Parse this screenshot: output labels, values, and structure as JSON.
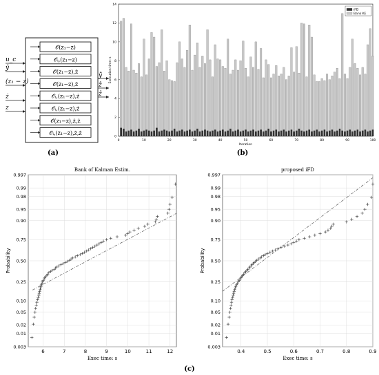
{
  "panel_labels": {
    "a": "(a)",
    "b": "(b)",
    "c": "(c)"
  },
  "diagram": {
    "inputs": [
      "u_c",
      "ŷ",
      "(z₁ − z)",
      "ż",
      "z"
    ],
    "blocks": [
      "𝒪(z₁−z)",
      "𝒪ᵢ,(z₁−z)",
      "𝒪(z₁−z),ż",
      "𝒪(z₁−z),ż",
      "𝒪ᵢ,(z₁−z),ż",
      "𝒪ᵢ,(z₁−z),ż",
      "𝒪(z₁−z),ż,ż",
      "𝒪ᵢ,(z₁−z),ż,ż"
    ],
    "outputs": [
      "ŷ̂",
      "ż̂",
      "ẑ"
    ]
  },
  "chart_data": [
    {
      "type": "bar",
      "title": "",
      "xlabel": "Iteration",
      "ylabel": "Execution time: s",
      "xlim": [
        0,
        100
      ],
      "ylim": [
        0,
        14
      ],
      "xticks": [
        0,
        10,
        20,
        30,
        40,
        50,
        60,
        70,
        80,
        90,
        100
      ],
      "yticks": [
        0,
        2,
        4,
        6,
        8,
        10,
        12,
        14
      ],
      "legend_position": "top-right",
      "series": [
        {
          "name": "iFD",
          "color": "#333333",
          "values": [
            0.9,
            0.8,
            0.5,
            0.6,
            0.7,
            0.5,
            0.6,
            0.8,
            0.5,
            0.6,
            0.7,
            0.6,
            0.5,
            0.6,
            0.9,
            0.5,
            0.6,
            0.7,
            0.6,
            0.5,
            0.6,
            0.8,
            0.5,
            0.6,
            0.7,
            0.5,
            0.6,
            0.7,
            0.5,
            0.6,
            0.8,
            0.5,
            0.6,
            0.7,
            0.6,
            0.5,
            0.6,
            0.7,
            0.5,
            0.6,
            0.7,
            0.5,
            0.6,
            0.8,
            0.5,
            0.6,
            0.7,
            0.5,
            0.6,
            0.7,
            0.5,
            0.6,
            0.7,
            0.5,
            0.6,
            0.7,
            0.5,
            0.6,
            0.8,
            0.5,
            0.6,
            0.7,
            0.5,
            0.6,
            0.7,
            0.5,
            0.6,
            0.7,
            0.5,
            0.6,
            0.8,
            0.6,
            0.5,
            0.6,
            0.7,
            0.5,
            0.6,
            0.7,
            0.5,
            0.6,
            0.7,
            0.5,
            0.6,
            0.7,
            0.5,
            0.6,
            0.8,
            0.6,
            0.5,
            0.6,
            0.7,
            0.5,
            0.6,
            0.7,
            0.5,
            0.6,
            0.7,
            0.5,
            0.6,
            0.7
          ]
        },
        {
          "name": "Bank KE",
          "color": "#c8c8c8",
          "values": [
            12.2,
            12.5,
            7.3,
            6.9,
            11.9,
            7.0,
            6.7,
            7.7,
            6.3,
            10.3,
            6.5,
            8.2,
            11.0,
            10.5,
            7.4,
            7.8,
            11.3,
            6.9,
            8.0,
            6.0,
            5.9,
            5.8,
            7.8,
            10.0,
            8.2,
            7.3,
            9.1,
            11.8,
            7.0,
            8.6,
            9.9,
            7.3,
            8.5,
            7.7,
            11.3,
            8.1,
            6.3,
            9.7,
            8.2,
            8.1,
            7.4,
            7.2,
            10.3,
            6.6,
            7.0,
            8.1,
            7.0,
            8.0,
            10.1,
            7.2,
            6.3,
            8.4,
            7.3,
            10.0,
            7.1,
            9.3,
            6.2,
            8.1,
            7.6,
            6.2,
            6.6,
            7.5,
            6.4,
            6.6,
            7.3,
            6.0,
            6.4,
            9.4,
            6.8,
            9.5,
            6.7,
            12.0,
            11.9,
            6.3,
            11.8,
            10.5,
            6.5,
            5.8,
            5.8,
            6.1,
            5.9,
            6.6,
            6.0,
            6.4,
            6.8,
            7.2,
            6.1,
            13.0,
            6.6,
            6.1,
            7.3,
            10.3,
            7.7,
            7.2,
            6.5,
            7.3,
            6.6,
            9.7,
            11.4,
            8.5
          ]
        }
      ]
    },
    {
      "type": "scatter",
      "title": "Bank of Kalman Estim.",
      "xlabel": "Exec time: s",
      "ylabel": "Probability",
      "scale": "normal-probability",
      "xlim": [
        5.3,
        12.3
      ],
      "xticks": [
        6,
        7,
        8,
        9,
        10,
        11,
        12
      ],
      "yticks": [
        0.003,
        0.01,
        0.02,
        0.05,
        0.1,
        0.25,
        0.5,
        0.75,
        0.9,
        0.95,
        0.98,
        0.99,
        0.997
      ],
      "ytick_labels": [
        "0.003",
        "0.01",
        "0.02",
        "0.05",
        "0.10",
        "0.25",
        "0.50",
        "0.75",
        "0.90",
        "0.95",
        "0.98",
        "0.99",
        "0.997"
      ],
      "points_x": [
        5.47,
        5.54,
        5.58,
        5.62,
        5.65,
        5.68,
        5.71,
        5.74,
        5.77,
        5.8,
        5.82,
        5.84,
        5.86,
        5.88,
        5.9,
        5.92,
        5.95,
        5.98,
        6.0,
        6.05,
        6.08,
        6.12,
        6.18,
        6.22,
        6.27,
        6.35,
        6.42,
        6.52,
        6.58,
        6.65,
        6.75,
        6.85,
        6.95,
        7.05,
        7.15,
        7.25,
        7.32,
        7.4,
        7.52,
        7.62,
        7.75,
        7.85,
        7.95,
        8.05,
        8.15,
        8.25,
        8.35,
        8.45,
        8.55,
        8.65,
        8.75,
        8.85,
        9.0,
        9.2,
        9.5,
        9.9,
        10.0,
        10.1,
        10.3,
        10.5,
        10.8,
        10.95,
        11.3,
        11.35,
        11.4,
        11.9,
        11.95,
        12.0,
        12.1,
        12.25
      ],
      "reference_line": {
        "style": "dash-dot",
        "x": [
          5.5,
          12.3
        ],
        "p": [
          0.175,
          0.935
        ]
      }
    },
    {
      "type": "scatter",
      "title": "proposed iFD",
      "xlabel": "Exec time: s",
      "ylabel": "Probability",
      "scale": "normal-probability",
      "xlim": [
        0.33,
        0.9
      ],
      "xticks": [
        0.4,
        0.5,
        0.6,
        0.7,
        0.8,
        0.9
      ],
      "yticks": [
        0.003,
        0.01,
        0.02,
        0.05,
        0.1,
        0.25,
        0.5,
        0.75,
        0.9,
        0.95,
        0.98,
        0.99,
        0.997
      ],
      "ytick_labels": [
        "0.003",
        "0.01",
        "0.02",
        "0.05",
        "0.10",
        "0.25",
        "0.50",
        "0.75",
        "0.90",
        "0.95",
        "0.98",
        "0.99",
        "0.997"
      ],
      "points_x": [
        0.345,
        0.351,
        0.355,
        0.358,
        0.36,
        0.362,
        0.364,
        0.366,
        0.368,
        0.37,
        0.372,
        0.374,
        0.376,
        0.378,
        0.38,
        0.383,
        0.386,
        0.39,
        0.393,
        0.397,
        0.4,
        0.403,
        0.406,
        0.41,
        0.414,
        0.418,
        0.422,
        0.426,
        0.43,
        0.434,
        0.438,
        0.442,
        0.446,
        0.45,
        0.455,
        0.46,
        0.466,
        0.472,
        0.478,
        0.485,
        0.492,
        0.5,
        0.51,
        0.52,
        0.53,
        0.54,
        0.552,
        0.565,
        0.578,
        0.59,
        0.6,
        0.61,
        0.62,
        0.64,
        0.66,
        0.68,
        0.7,
        0.72,
        0.73,
        0.74,
        0.745,
        0.75,
        0.8,
        0.82,
        0.84,
        0.86,
        0.87,
        0.88,
        0.895,
        0.9
      ],
      "reference_line": {
        "style": "dash-dot",
        "x": [
          0.33,
          0.9
        ],
        "p": [
          0.165,
          0.996
        ]
      }
    }
  ]
}
